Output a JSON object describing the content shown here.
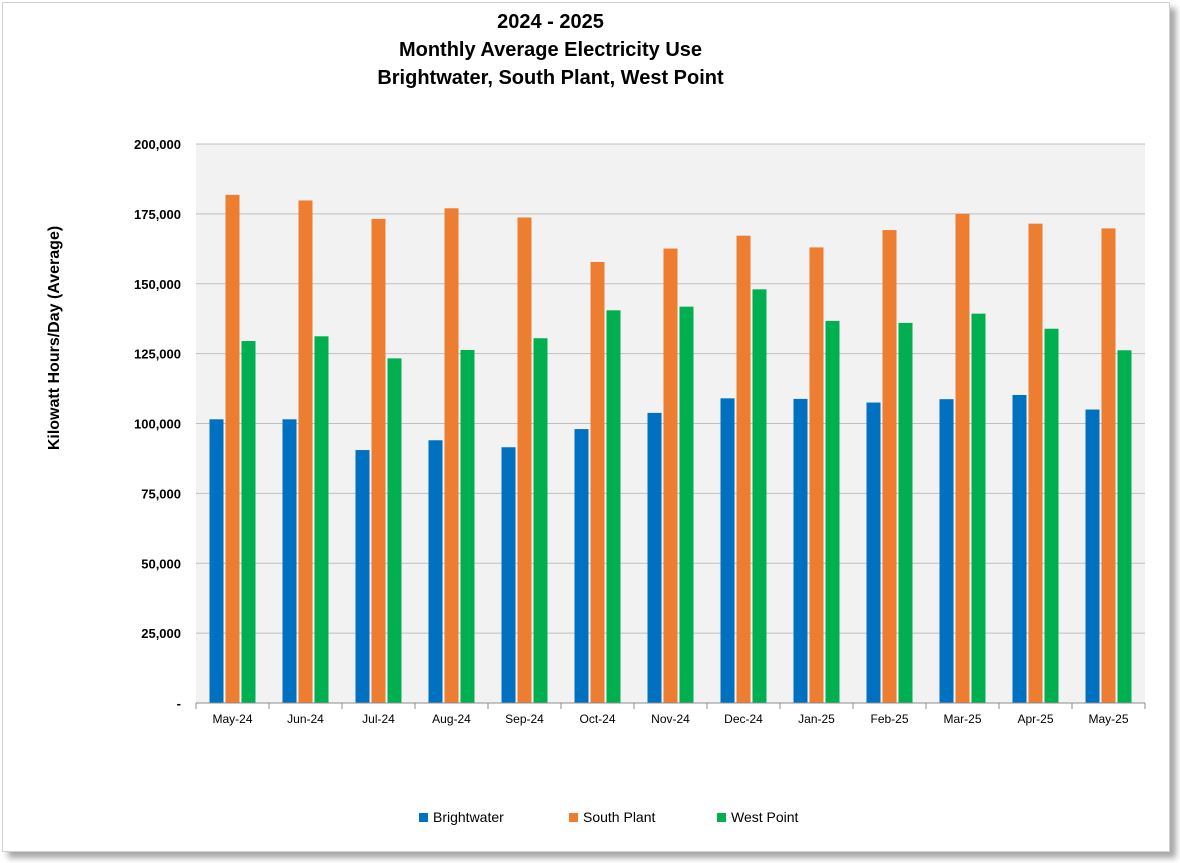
{
  "colors": {
    "plot_bg": "#f2f2f2",
    "gridline": "#bfbfbf",
    "axis": "#8c8c8c",
    "Brightwater": "#0070c0",
    "South Plant": "#ed7d31",
    "West Point": "#00b050"
  },
  "chart_data": {
    "type": "bar",
    "title_lines": [
      "2024 - 2025",
      "Monthly Average Electricity Use",
      "Brightwater, South Plant, West Point"
    ],
    "xlabel": "",
    "ylabel": "Kilowatt Hours/Day (Average)",
    "ylim": [
      0,
      200000
    ],
    "yticks": [
      0,
      25000,
      50000,
      75000,
      100000,
      125000,
      150000,
      175000,
      200000
    ],
    "ytick_labels": [
      "-",
      "25,000",
      "50,000",
      "75,000",
      "100,000",
      "125,000",
      "150,000",
      "175,000",
      "200,000"
    ],
    "grid": true,
    "legend_position": "bottom",
    "categories": [
      "May-24",
      "Jun-24",
      "Jul-24",
      "Aug-24",
      "Sep-24",
      "Oct-24",
      "Nov-24",
      "Dec-24",
      "Jan-25",
      "Feb-25",
      "Mar-25",
      "Apr-25",
      "May-25"
    ],
    "series": [
      {
        "name": "Brightwater",
        "values": [
          101500,
          101500,
          90500,
          94000,
          91500,
          98000,
          103800,
          109000,
          108800,
          107500,
          108700,
          110200,
          105000
        ]
      },
      {
        "name": "South Plant",
        "values": [
          181800,
          179800,
          173200,
          177000,
          173700,
          157800,
          162600,
          167200,
          163000,
          169200,
          175000,
          171500,
          169800
        ]
      },
      {
        "name": "West Point",
        "values": [
          129500,
          131200,
          123300,
          126300,
          130500,
          140500,
          141800,
          148000,
          136700,
          136000,
          139300,
          133900,
          126200
        ]
      }
    ]
  }
}
